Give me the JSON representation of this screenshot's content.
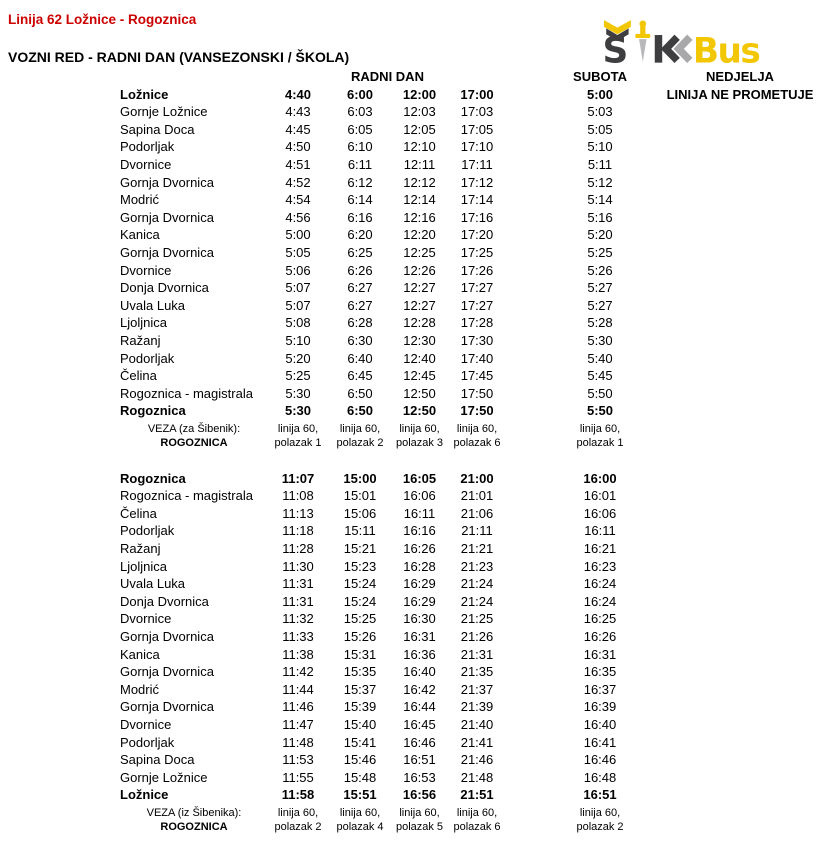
{
  "page": {
    "title": "Linija 62 Ložnice - Rogoznica",
    "subtitle": "VOZNI RED - RADNI DAN (VANSEZONSKI / ŠKOLA)"
  },
  "logo": {
    "s": "Š",
    "bus": "Bus",
    "colors": {
      "dark": "#3E3E40",
      "gray": "#A8A8AA",
      "yellow": "#F2C600",
      "blade": "#B8B8BA"
    }
  },
  "headers": {
    "radni_dan": "RADNI DAN",
    "subota": "SUBOTA",
    "nedjelja": "NEDJELJA",
    "nedjelja_note": "LINIJA NE PROMETUJE"
  },
  "tables": [
    {
      "name": "loznice-rogoznica",
      "rows": [
        {
          "stop": "Ložnice",
          "bold": true,
          "times": [
            "4:40",
            "6:00",
            "12:00",
            "17:00"
          ],
          "subota": "5:00"
        },
        {
          "stop": "Gornje Ložnice",
          "bold": false,
          "times": [
            "4:43",
            "6:03",
            "12:03",
            "17:03"
          ],
          "subota": "5:03"
        },
        {
          "stop": "Sapina Doca",
          "bold": false,
          "times": [
            "4:45",
            "6:05",
            "12:05",
            "17:05"
          ],
          "subota": "5:05"
        },
        {
          "stop": "Podorljak",
          "bold": false,
          "times": [
            "4:50",
            "6:10",
            "12:10",
            "17:10"
          ],
          "subota": "5:10"
        },
        {
          "stop": "Dvornice",
          "bold": false,
          "times": [
            "4:51",
            "6:11",
            "12:11",
            "17:11"
          ],
          "subota": "5:11"
        },
        {
          "stop": "Gornja Dvornica",
          "bold": false,
          "times": [
            "4:52",
            "6:12",
            "12:12",
            "17:12"
          ],
          "subota": "5:12"
        },
        {
          "stop": "Modrić",
          "bold": false,
          "times": [
            "4:54",
            "6:14",
            "12:14",
            "17:14"
          ],
          "subota": "5:14"
        },
        {
          "stop": "Gornja Dvornica",
          "bold": false,
          "times": [
            "4:56",
            "6:16",
            "12:16",
            "17:16"
          ],
          "subota": "5:16"
        },
        {
          "stop": "Kanica",
          "bold": false,
          "times": [
            "5:00",
            "6:20",
            "12:20",
            "17:20"
          ],
          "subota": "5:20"
        },
        {
          "stop": "Gornja Dvornica",
          "bold": false,
          "times": [
            "5:05",
            "6:25",
            "12:25",
            "17:25"
          ],
          "subota": "5:25"
        },
        {
          "stop": "Dvornice",
          "bold": false,
          "times": [
            "5:06",
            "6:26",
            "12:26",
            "17:26"
          ],
          "subota": "5:26"
        },
        {
          "stop": "Donja Dvornica",
          "bold": false,
          "times": [
            "5:07",
            "6:27",
            "12:27",
            "17:27"
          ],
          "subota": "5:27"
        },
        {
          "stop": "Uvala Luka",
          "bold": false,
          "times": [
            "5:07",
            "6:27",
            "12:27",
            "17:27"
          ],
          "subota": "5:27"
        },
        {
          "stop": "Ljoljnica",
          "bold": false,
          "times": [
            "5:08",
            "6:28",
            "12:28",
            "17:28"
          ],
          "subota": "5:28"
        },
        {
          "stop": "Ražanj",
          "bold": false,
          "times": [
            "5:10",
            "6:30",
            "12:30",
            "17:30"
          ],
          "subota": "5:30"
        },
        {
          "stop": "Podorljak",
          "bold": false,
          "times": [
            "5:20",
            "6:40",
            "12:40",
            "17:40"
          ],
          "subota": "5:40"
        },
        {
          "stop": "Čelina",
          "bold": false,
          "times": [
            "5:25",
            "6:45",
            "12:45",
            "17:45"
          ],
          "subota": "5:45"
        },
        {
          "stop": "Rogoznica - magistrala",
          "bold": false,
          "times": [
            "5:30",
            "6:50",
            "12:50",
            "17:50"
          ],
          "subota": "5:50"
        },
        {
          "stop": "Rogoznica",
          "bold": true,
          "times": [
            "5:30",
            "6:50",
            "12:50",
            "17:50"
          ],
          "subota": "5:50"
        }
      ],
      "veza": {
        "label": [
          "VEZA (za Šibenik):",
          "ROGOZNICA"
        ],
        "radni_dan": [
          [
            "linija 60,",
            "polazak 1"
          ],
          [
            "linija 60,",
            "polazak 2"
          ],
          [
            "linija 60,",
            "polazak 3"
          ],
          [
            "linija 60,",
            "polazak 6"
          ]
        ],
        "subota": [
          "linija 60,",
          "polazak 1"
        ]
      }
    },
    {
      "name": "rogoznica-loznice",
      "rows": [
        {
          "stop": "Rogoznica",
          "bold": true,
          "times": [
            "11:07",
            "15:00",
            "16:05",
            "21:00"
          ],
          "subota": "16:00"
        },
        {
          "stop": "Rogoznica - magistrala",
          "bold": false,
          "times": [
            "11:08",
            "15:01",
            "16:06",
            "21:01"
          ],
          "subota": "16:01"
        },
        {
          "stop": "Čelina",
          "bold": false,
          "times": [
            "11:13",
            "15:06",
            "16:11",
            "21:06"
          ],
          "subota": "16:06"
        },
        {
          "stop": "Podorljak",
          "bold": false,
          "times": [
            "11:18",
            "15:11",
            "16:16",
            "21:11"
          ],
          "subota": "16:11"
        },
        {
          "stop": "Ražanj",
          "bold": false,
          "times": [
            "11:28",
            "15:21",
            "16:26",
            "21:21"
          ],
          "subota": "16:21"
        },
        {
          "stop": "Ljoljnica",
          "bold": false,
          "times": [
            "11:30",
            "15:23",
            "16:28",
            "21:23"
          ],
          "subota": "16:23"
        },
        {
          "stop": "Uvala Luka",
          "bold": false,
          "times": [
            "11:31",
            "15:24",
            "16:29",
            "21:24"
          ],
          "subota": "16:24"
        },
        {
          "stop": "Donja Dvornica",
          "bold": false,
          "times": [
            "11:31",
            "15:24",
            "16:29",
            "21:24"
          ],
          "subota": "16:24"
        },
        {
          "stop": "Dvornice",
          "bold": false,
          "times": [
            "11:32",
            "15:25",
            "16:30",
            "21:25"
          ],
          "subota": "16:25"
        },
        {
          "stop": "Gornja Dvornica",
          "bold": false,
          "times": [
            "11:33",
            "15:26",
            "16:31",
            "21:26"
          ],
          "subota": "16:26"
        },
        {
          "stop": "Kanica",
          "bold": false,
          "times": [
            "11:38",
            "15:31",
            "16:36",
            "21:31"
          ],
          "subota": "16:31"
        },
        {
          "stop": "Gornja Dvornica",
          "bold": false,
          "times": [
            "11:42",
            "15:35",
            "16:40",
            "21:35"
          ],
          "subota": "16:35"
        },
        {
          "stop": "Modrić",
          "bold": false,
          "times": [
            "11:44",
            "15:37",
            "16:42",
            "21:37"
          ],
          "subota": "16:37"
        },
        {
          "stop": "Gornja Dvornica",
          "bold": false,
          "times": [
            "11:46",
            "15:39",
            "16:44",
            "21:39"
          ],
          "subota": "16:39"
        },
        {
          "stop": "Dvornice",
          "bold": false,
          "times": [
            "11:47",
            "15:40",
            "16:45",
            "21:40"
          ],
          "subota": "16:40"
        },
        {
          "stop": "Podorljak",
          "bold": false,
          "times": [
            "11:48",
            "15:41",
            "16:46",
            "21:41"
          ],
          "subota": "16:41"
        },
        {
          "stop": "Sapina Doca",
          "bold": false,
          "times": [
            "11:53",
            "15:46",
            "16:51",
            "21:46"
          ],
          "subota": "16:46"
        },
        {
          "stop": "Gornje Ložnice",
          "bold": false,
          "times": [
            "11:55",
            "15:48",
            "16:53",
            "21:48"
          ],
          "subota": "16:48"
        },
        {
          "stop": "Ložnice",
          "bold": true,
          "times": [
            "11:58",
            "15:51",
            "16:56",
            "21:51"
          ],
          "subota": "16:51"
        }
      ],
      "veza": {
        "label": [
          "VEZA (iz Šibenika):",
          "ROGOZNICA"
        ],
        "radni_dan": [
          [
            "linija 60,",
            "polazak 2"
          ],
          [
            "linija 60,",
            "polazak 4"
          ],
          [
            "linija 60,",
            "polazak 5"
          ],
          [
            "linija 60,",
            "polazak 6"
          ]
        ],
        "subota": [
          "linija 60,",
          "polazak 2"
        ]
      }
    }
  ]
}
